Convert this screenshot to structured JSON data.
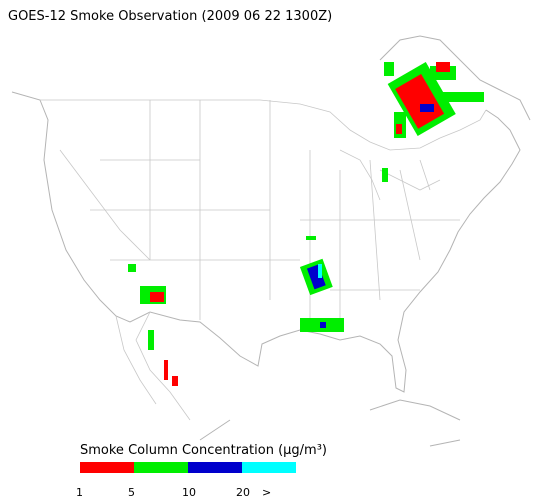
{
  "header": {
    "title": "GOES-12 Smoke Observation (2009 06 22  1300Z)"
  },
  "legend": {
    "title": "Smoke Column Concentration (μg/m³)",
    "colors": [
      "#ff0000",
      "#00ee00",
      "#0000cc",
      "#00ffff"
    ],
    "ticks": [
      1,
      5,
      10,
      20
    ],
    "overflow_label": ">"
  }
}
